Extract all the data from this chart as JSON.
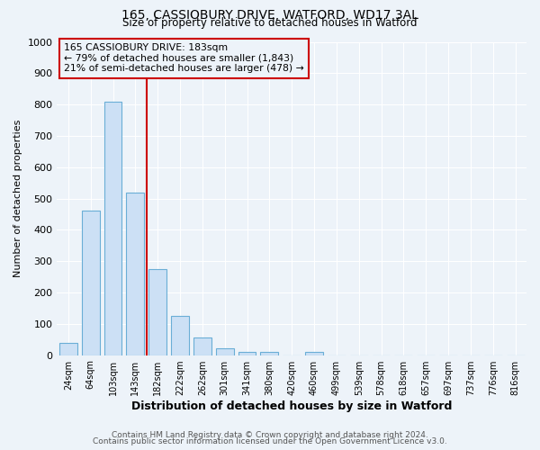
{
  "title1": "165, CASSIOBURY DRIVE, WATFORD, WD17 3AL",
  "title2": "Size of property relative to detached houses in Watford",
  "xlabel": "Distribution of detached houses by size in Watford",
  "ylabel": "Number of detached properties",
  "categories": [
    "24sqm",
    "64sqm",
    "103sqm",
    "143sqm",
    "182sqm",
    "222sqm",
    "262sqm",
    "301sqm",
    "341sqm",
    "380sqm",
    "420sqm",
    "460sqm",
    "499sqm",
    "539sqm",
    "578sqm",
    "618sqm",
    "657sqm",
    "697sqm",
    "737sqm",
    "776sqm",
    "816sqm"
  ],
  "values": [
    40,
    460,
    808,
    520,
    275,
    125,
    57,
    22,
    10,
    10,
    0,
    10,
    0,
    0,
    0,
    0,
    0,
    0,
    0,
    0,
    0
  ],
  "bar_color": "#cce0f5",
  "bar_edge_color": "#6aaed6",
  "vline_color": "#cc0000",
  "annotation_line1": "165 CASSIOBURY DRIVE: 183sqm",
  "annotation_line2": "← 79% of detached houses are smaller (1,843)",
  "annotation_line3": "21% of semi-detached houses are larger (478) →",
  "annotation_box_color": "#cc0000",
  "ylim": [
    0,
    1000
  ],
  "yticks": [
    0,
    100,
    200,
    300,
    400,
    500,
    600,
    700,
    800,
    900,
    1000
  ],
  "footer1": "Contains HM Land Registry data © Crown copyright and database right 2024.",
  "footer2": "Contains public sector information licensed under the Open Government Licence v3.0.",
  "bg_color": "#edf3f9",
  "grid_color": "#ffffff"
}
